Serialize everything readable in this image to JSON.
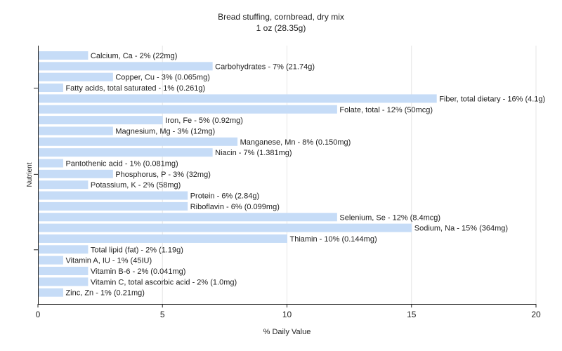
{
  "chart_data": {
    "type": "bar",
    "orientation": "horizontal",
    "title": "Bread stuffing, cornbread, dry mix",
    "subtitle": "1 oz (28.35g)",
    "xlabel": "% Daily Value",
    "ylabel": "Nutrient",
    "xlim": [
      0,
      20
    ],
    "xticks": [
      0,
      5,
      10,
      15,
      20
    ],
    "grid": true,
    "bar_color": "#c6dcf7",
    "categories": [
      "Calcium, Ca",
      "Carbohydrates",
      "Copper, Cu",
      "Fatty acids, total saturated",
      "Fiber, total dietary",
      "Folate, total",
      "Iron, Fe",
      "Magnesium, Mg",
      "Manganese, Mn",
      "Niacin",
      "Pantothenic acid",
      "Phosphorus, P",
      "Potassium, K",
      "Protein",
      "Riboflavin",
      "Selenium, Se",
      "Sodium, Na",
      "Thiamin",
      "Total lipid (fat)",
      "Vitamin A, IU",
      "Vitamin B-6",
      "Vitamin C, total ascorbic acid",
      "Zinc, Zn"
    ],
    "values": [
      2,
      7,
      3,
      1,
      16,
      12,
      5,
      3,
      8,
      7,
      1,
      3,
      2,
      6,
      6,
      12,
      15,
      10,
      2,
      1,
      2,
      2,
      1
    ],
    "labels": [
      "Calcium, Ca - 2% (22mg)",
      "Carbohydrates - 7% (21.74g)",
      "Copper, Cu - 3% (0.065mg)",
      "Fatty acids, total saturated - 1% (0.261g)",
      "Fiber, total dietary - 16% (4.1g)",
      "Folate, total - 12% (50mcg)",
      "Iron, Fe - 5% (0.92mg)",
      "Magnesium, Mg - 3% (12mg)",
      "Manganese, Mn - 8% (0.150mg)",
      "Niacin - 7% (1.381mg)",
      "Pantothenic acid - 1% (0.081mg)",
      "Phosphorus, P - 3% (32mg)",
      "Potassium, K - 2% (58mg)",
      "Protein - 6% (2.84g)",
      "Riboflavin - 6% (0.099mg)",
      "Selenium, Se - 12% (8.4mcg)",
      "Sodium, Na - 15% (364mg)",
      "Thiamin - 10% (0.144mg)",
      "Total lipid (fat) - 2% (1.19g)",
      "Vitamin A, IU - 1% (45IU)",
      "Vitamin B-6 - 2% (0.041mg)",
      "Vitamin C, total ascorbic acid - 2% (1.0mg)",
      "Zinc, Zn - 1% (0.21mg)"
    ]
  }
}
